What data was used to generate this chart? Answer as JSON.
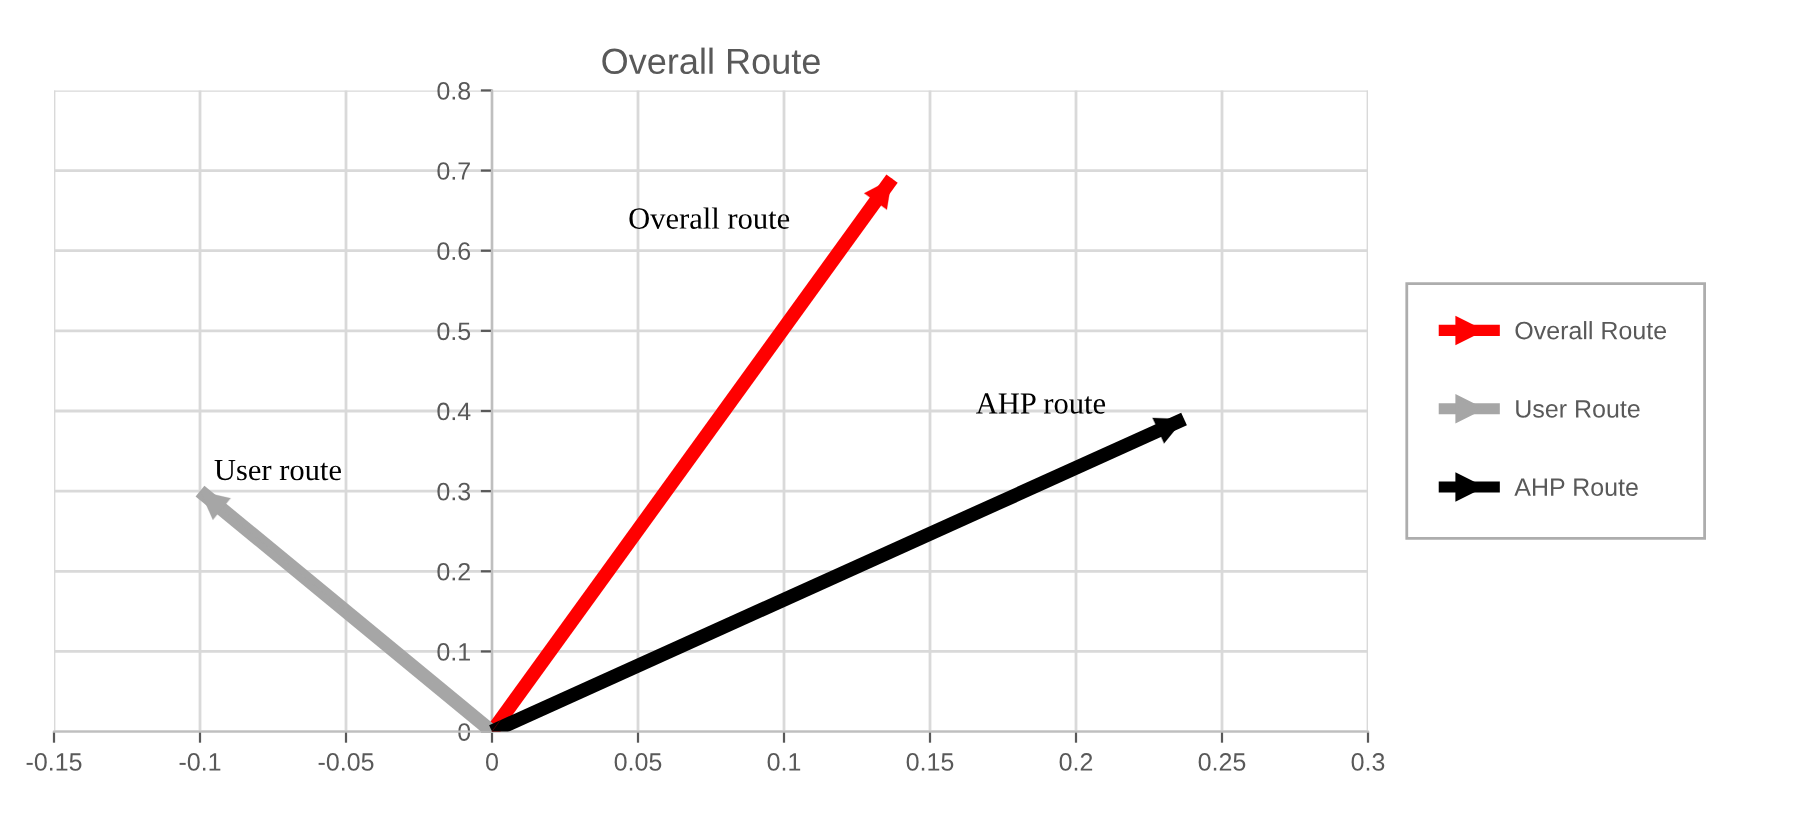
{
  "chart_data": {
    "type": "line",
    "title": "Overall Route",
    "series": [
      {
        "name": "Overall Route",
        "color": "#ff0000",
        "x": [
          0,
          0.137
        ],
        "values": [
          0,
          0.69
        ]
      },
      {
        "name": "User Route",
        "color": "#a6a6a6",
        "x": [
          0,
          -0.1
        ],
        "values": [
          0,
          0.3
        ]
      },
      {
        "name": "AHP Route",
        "color": "#000000",
        "x": [
          0,
          0.237
        ],
        "values": [
          0,
          0.39
        ]
      }
    ],
    "xlim": [
      -0.15,
      0.3
    ],
    "xticks": [
      -0.15,
      -0.1,
      -0.05,
      0,
      0.05,
      0.1,
      0.15,
      0.2,
      0.25,
      0.3
    ],
    "ylim": [
      0,
      0.8
    ],
    "yticks": [
      0,
      0.1,
      0.2,
      0.3,
      0.4,
      0.5,
      0.6,
      0.7,
      0.8
    ],
    "annotations": [
      "Overall route",
      "User route",
      "AHP route"
    ],
    "grid": true,
    "legend": "right",
    "marker": "none",
    "line_style": "solid"
  }
}
